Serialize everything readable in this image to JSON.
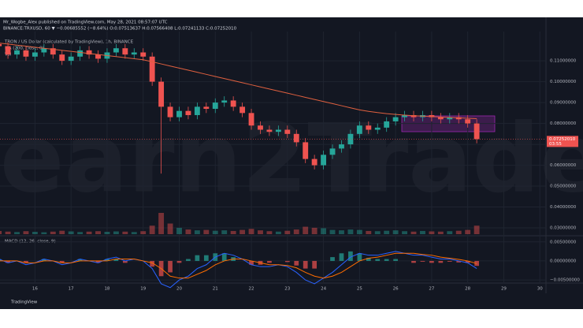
{
  "chart_data": {
    "type": "candlestick",
    "publisher": "Mr_Wogbe_Alex published on TradingView.com, May 28, 2021 08:57:07 UTC",
    "symbol_line": "BINANCE:TRXUSD, 60 ▼ −0.00685552 (−8.64%) O:0.07513637 H:0.07566408 L:0.07241133 C:0.07252010",
    "title": "TRON / US Dollar (calculated by TradingView), 1h, BINANCE",
    "watermark": "Learn2Trade",
    "footer": "TradingView",
    "up_color": "#26a69a",
    "down_color": "#ef5350",
    "x": [
      15,
      15.25,
      15.5,
      15.75,
      16,
      16.25,
      16.5,
      16.75,
      17,
      17.25,
      17.5,
      17.75,
      18,
      18.25,
      18.5,
      18.75,
      19,
      19.25,
      19.5,
      19.75,
      20,
      20.25,
      20.5,
      20.75,
      21,
      21.25,
      21.5,
      21.75,
      22,
      22.25,
      22.5,
      22.75,
      23,
      23.25,
      23.5,
      23.75,
      24,
      24.25,
      24.5,
      24.75,
      25,
      25.25,
      25.5,
      25.75,
      26,
      26.25,
      26.5,
      26.75,
      27,
      27.25,
      27.5,
      27.75,
      28,
      28.25
    ],
    "open": [
      0.118,
      0.117,
      0.113,
      0.115,
      0.112,
      0.114,
      0.116,
      0.113,
      0.11,
      0.112,
      0.115,
      0.113,
      0.111,
      0.114,
      0.116,
      0.113,
      0.114,
      0.112,
      0.1,
      0.088,
      0.083,
      0.086,
      0.084,
      0.088,
      0.087,
      0.09,
      0.091,
      0.088,
      0.085,
      0.079,
      0.077,
      0.076,
      0.077,
      0.075,
      0.071,
      0.063,
      0.06,
      0.065,
      0.068,
      0.07,
      0.075,
      0.079,
      0.077,
      0.078,
      0.081,
      0.083,
      0.084,
      0.083,
      0.084,
      0.083,
      0.082,
      0.083,
      0.082,
      0.08
    ],
    "high": [
      0.12,
      0.119,
      0.117,
      0.117,
      0.116,
      0.118,
      0.118,
      0.115,
      0.114,
      0.117,
      0.117,
      0.115,
      0.116,
      0.118,
      0.118,
      0.116,
      0.116,
      0.114,
      0.102,
      0.09,
      0.088,
      0.088,
      0.09,
      0.09,
      0.092,
      0.093,
      0.093,
      0.09,
      0.087,
      0.081,
      0.079,
      0.079,
      0.079,
      0.077,
      0.073,
      0.065,
      0.067,
      0.07,
      0.072,
      0.077,
      0.081,
      0.081,
      0.08,
      0.083,
      0.085,
      0.086,
      0.086,
      0.086,
      0.086,
      0.085,
      0.085,
      0.085,
      0.084,
      0.082
    ],
    "low": [
      0.115,
      0.111,
      0.111,
      0.11,
      0.11,
      0.112,
      0.111,
      0.108,
      0.108,
      0.11,
      0.111,
      0.109,
      0.109,
      0.112,
      0.111,
      0.111,
      0.11,
      0.098,
      0.056,
      0.081,
      0.081,
      0.082,
      0.082,
      0.085,
      0.085,
      0.088,
      0.086,
      0.083,
      0.077,
      0.075,
      0.074,
      0.074,
      0.073,
      0.069,
      0.061,
      0.058,
      0.058,
      0.063,
      0.066,
      0.068,
      0.073,
      0.075,
      0.075,
      0.076,
      0.079,
      0.081,
      0.081,
      0.081,
      0.081,
      0.08,
      0.08,
      0.08,
      0.078,
      0.0705
    ],
    "close": [
      0.117,
      0.113,
      0.115,
      0.112,
      0.114,
      0.116,
      0.113,
      0.11,
      0.112,
      0.115,
      0.113,
      0.111,
      0.114,
      0.116,
      0.113,
      0.114,
      0.112,
      0.1,
      0.088,
      0.083,
      0.086,
      0.084,
      0.088,
      0.087,
      0.09,
      0.091,
      0.088,
      0.085,
      0.079,
      0.077,
      0.076,
      0.077,
      0.075,
      0.071,
      0.063,
      0.06,
      0.065,
      0.068,
      0.07,
      0.075,
      0.079,
      0.077,
      0.078,
      0.081,
      0.083,
      0.084,
      0.083,
      0.084,
      0.083,
      0.082,
      0.083,
      0.082,
      0.08,
      0.0725
    ],
    "ma": {
      "name": "MA (200, close, 0)",
      "color": "#e0603f",
      "values": [
        0.1185,
        0.118,
        0.1175,
        0.117,
        0.1165,
        0.116,
        0.1155,
        0.115,
        0.1145,
        0.114,
        0.1135,
        0.113,
        0.1125,
        0.112,
        0.1115,
        0.111,
        0.1105,
        0.1095,
        0.1085,
        0.1075,
        0.1065,
        0.1055,
        0.1045,
        0.1035,
        0.1025,
        0.1015,
        0.1005,
        0.0995,
        0.0985,
        0.0975,
        0.0965,
        0.0955,
        0.0945,
        0.0935,
        0.0925,
        0.0915,
        0.0905,
        0.0895,
        0.0885,
        0.0875,
        0.0865,
        0.0858,
        0.0852,
        0.0847,
        0.0843,
        0.084,
        0.0837,
        0.0835,
        0.0833,
        0.0831,
        0.0829,
        0.0827,
        0.0825,
        0.0823
      ]
    },
    "volume": {
      "name": "Vol",
      "values": [
        15,
        12,
        10,
        14,
        11,
        9,
        12,
        16,
        13,
        10,
        12,
        14,
        11,
        13,
        12,
        10,
        14,
        40,
        100,
        50,
        30,
        22,
        18,
        20,
        16,
        18,
        15,
        20,
        25,
        18,
        14,
        12,
        16,
        22,
        35,
        30,
        28,
        20,
        18,
        22,
        20,
        15,
        14,
        16,
        18,
        14,
        12,
        15,
        13,
        12,
        14,
        16,
        20,
        40
      ]
    },
    "last_price": {
      "value": 0.0725201,
      "label": "0.07252010",
      "countdown": "03:55"
    },
    "xlim": [
      15.03,
      30.17
    ],
    "xticks": [
      16,
      17,
      18,
      19,
      20,
      21,
      22,
      23,
      24,
      25,
      26,
      27,
      28,
      29,
      30
    ],
    "ylim": [
      0.027,
      0.124
    ],
    "yticks": [
      {
        "value": 0.03,
        "label": "0.03000000"
      },
      {
        "value": 0.04,
        "label": "0.04000000"
      },
      {
        "value": 0.05,
        "label": "0.05000000"
      },
      {
        "value": 0.06,
        "label": "0.06000000"
      },
      {
        "value": 0.07,
        "label": "0.07000000"
      },
      {
        "value": 0.08,
        "label": "0.08000000"
      },
      {
        "value": 0.09,
        "label": "0.09000000"
      },
      {
        "value": 0.1,
        "label": "0.10000000"
      },
      {
        "value": 0.11,
        "label": "0.11000000"
      }
    ],
    "grid": true,
    "macd": {
      "name": "MACD (12, 26, close, 9)",
      "macd_color": "#2962ff",
      "signal_color": "#ff6d00",
      "macd": [
        0.0005,
        -0.0005,
        0,
        -0.001,
        -0.0005,
        0.0005,
        0,
        -0.001,
        -0.0005,
        0.0005,
        0,
        -0.0005,
        0.0005,
        0.001,
        0,
        0.0005,
        0,
        -0.002,
        -0.006,
        -0.007,
        -0.005,
        -0.004,
        -0.002,
        -0.001,
        0.001,
        0.002,
        0.0015,
        0.0005,
        -0.001,
        -0.0015,
        -0.0015,
        -0.001,
        -0.0015,
        -0.003,
        -0.005,
        -0.006,
        -0.0045,
        -0.003,
        -0.001,
        0.001,
        0.002,
        0.0015,
        0.0015,
        0.002,
        0.0025,
        0.002,
        0.0015,
        0.0015,
        0.001,
        0.0005,
        0.0005,
        0,
        -0.0005,
        -0.002
      ],
      "signal": [
        0,
        0,
        0,
        -0.0005,
        -0.0005,
        0,
        0,
        -0.0005,
        -0.0005,
        0,
        0,
        0,
        0,
        0.0005,
        0.0005,
        0.0005,
        0,
        -0.0005,
        -0.002,
        -0.004,
        -0.0045,
        -0.0045,
        -0.0035,
        -0.0025,
        -0.001,
        0,
        0.0005,
        0.0005,
        0,
        -0.0005,
        -0.001,
        -0.001,
        -0.0012,
        -0.0018,
        -0.003,
        -0.004,
        -0.0045,
        -0.004,
        -0.003,
        -0.0015,
        0,
        0.0007,
        0.001,
        0.0015,
        0.002,
        0.002,
        0.002,
        0.0017,
        0.0015,
        0.001,
        0.0007,
        0.0004,
        0,
        -0.0007
      ],
      "histogram": [
        0.0005,
        -0.0005,
        0,
        -0.0005,
        0,
        0.0005,
        0,
        -0.0005,
        0,
        0.0005,
        0,
        -0.0005,
        0.0005,
        0.0005,
        -0.0005,
        0,
        0,
        -0.0015,
        -0.004,
        -0.003,
        -0.0005,
        0.0005,
        0.0015,
        0.0015,
        0.002,
        0.002,
        0.001,
        0,
        -0.001,
        -0.001,
        -0.0005,
        0,
        -0.0003,
        -0.0012,
        -0.002,
        -0.002,
        0,
        0.001,
        0.002,
        0.0025,
        0.002,
        0.0008,
        0.0005,
        0.0005,
        0.0005,
        0,
        -0.0005,
        -0.0002,
        -0.0005,
        -0.0005,
        -0.0002,
        -0.0004,
        -0.0005,
        -0.0013
      ],
      "ylim": [
        -0.0056,
        0.0064
      ],
      "yticks": [
        {
          "value": 0.005,
          "label": "0.00500000"
        },
        {
          "value": 0,
          "label": "0.00000000"
        },
        {
          "value": -0.005,
          "label": "−0.00500000"
        }
      ]
    }
  }
}
